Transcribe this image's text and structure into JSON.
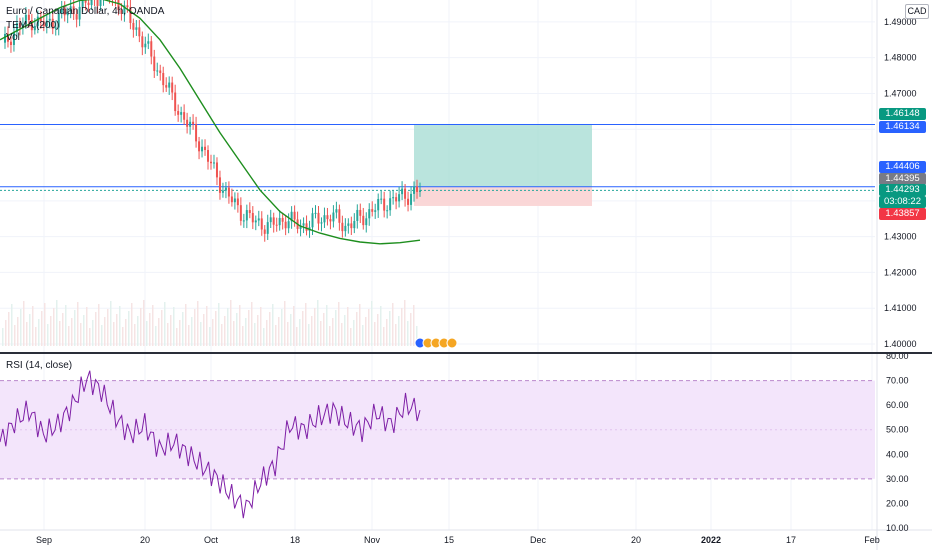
{
  "legend": {
    "symbol": "Euro / Canadian Dollar, 4h, OANDA",
    "indicator_tema": "TEMA (200)",
    "indicator_vol": "Vol",
    "rsi": "RSI (14, close)"
  },
  "currency": "CAD",
  "price_axis": {
    "ticks": [
      "1.49000",
      "1.48000",
      "1.47000",
      "1.46000",
      "1.44000",
      "1.43000",
      "1.42000",
      "1.41000",
      "1.40000"
    ]
  },
  "rsi_axis": {
    "ticks": [
      "80.00",
      "70.00",
      "60.00",
      "50.00",
      "40.00",
      "30.00",
      "20.00",
      "10.00"
    ]
  },
  "time_axis": {
    "labels": [
      "Sep",
      "20",
      "Oct",
      "18",
      "Nov",
      "15",
      "Dec",
      "20",
      "2022",
      "17",
      "Feb"
    ]
  },
  "price_tags": [
    {
      "text": "1.46148",
      "color": "#089981"
    },
    {
      "text": "1.46134",
      "color": "#2962ff"
    },
    {
      "text": "1.44406",
      "color": "#2962ff"
    },
    {
      "text": "1.44395",
      "color": "#787b86"
    },
    {
      "text": "1.44293",
      "color": "#089981"
    },
    {
      "text": "03:08:22",
      "color": "#089981"
    },
    {
      "text": "1.43857",
      "color": "#f23645"
    }
  ],
  "colors": {
    "up": "#26a69a",
    "down": "#ef5350",
    "tema": "#1e8e1e",
    "rsi": "#7e1fa6",
    "rsi_band": "#f3e5fb",
    "profit_zone": "#a9ddd5",
    "loss_zone": "#f9d3d3",
    "hline": "#2962ff"
  },
  "chart_data": {
    "type": "line",
    "series": [
      {
        "values": [
          1.483,
          1.4885,
          1.4905,
          1.489,
          1.492,
          1.4935,
          1.496,
          1.4985,
          1.494,
          1.488,
          1.48,
          1.472,
          1.464,
          1.458,
          1.45,
          1.442,
          1.437,
          1.434,
          1.433,
          1.435,
          1.433,
          1.4345,
          1.436,
          1.433,
          1.435,
          1.438,
          1.44,
          1.4415,
          1.4429
        ]
      },
      {
        "values": [
          1.485,
          1.488,
          1.491,
          1.494,
          1.496,
          1.4965,
          1.495,
          1.491,
          1.485,
          1.477,
          1.468,
          1.459,
          1.451,
          1.443,
          1.437,
          1.433,
          1.431,
          1.4295,
          1.4285,
          1.428,
          1.4283,
          1.429
        ]
      },
      {
        "values": [
          45,
          53,
          58,
          48,
          52,
          60,
          71,
          66,
          55,
          48,
          52,
          42,
          45,
          40,
          35,
          30,
          23,
          18,
          29,
          36,
          52,
          50,
          55,
          58,
          53,
          50,
          57,
          52,
          60,
          58
        ]
      }
    ],
    "ylim_price": [
      1.4,
      1.495
    ],
    "ylim_rsi": [
      10,
      80
    ],
    "rsi_bands": [
      30,
      70
    ],
    "levels": [
      1.46134,
      1.44395
    ],
    "position": {
      "entry": 1.44395,
      "target": 1.46148,
      "stop": 1.43857
    }
  }
}
